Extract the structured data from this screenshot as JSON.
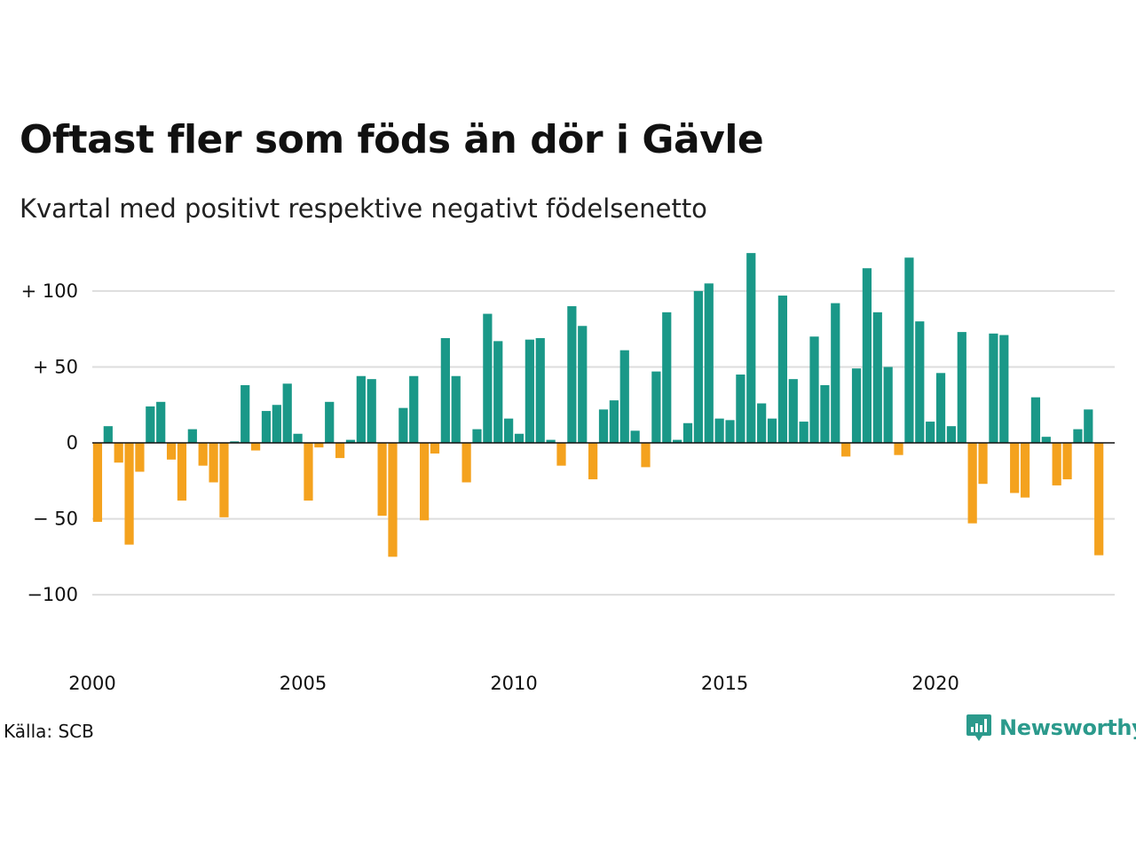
{
  "chart_data": {
    "type": "bar",
    "title": "Oftast fler som föds än dör i Gävle",
    "subtitle": "Kvartal med positivt respektive negativt födelsenetto",
    "source": "Källa: SCB",
    "brand": "Newsworthy",
    "colors": {
      "positive": "#1a9888",
      "negative": "#f4a21e",
      "grid": "#dddddd",
      "axis": "#111111"
    },
    "ylim": [
      -135,
      128
    ],
    "yticks": [
      {
        "value": 100,
        "label": "+ 100"
      },
      {
        "value": 50,
        "label": "+  50"
      },
      {
        "value": 0,
        "label": "0"
      },
      {
        "value": -50,
        "label": "− 50"
      },
      {
        "value": -100,
        "label": "−100"
      }
    ],
    "xlim": [
      2000,
      2024.25
    ],
    "xticks": [
      {
        "value": 2000,
        "label": "2000"
      },
      {
        "value": 2005,
        "label": "2005"
      },
      {
        "value": 2010,
        "label": "2010"
      },
      {
        "value": 2015,
        "label": "2015"
      },
      {
        "value": 2020,
        "label": "2020"
      }
    ],
    "first_period": "2000Q1",
    "values": [
      -52,
      11,
      -13,
      -67,
      -19,
      24,
      27,
      -11,
      -38,
      9,
      -15,
      -26,
      -49,
      1,
      38,
      -5,
      21,
      25,
      39,
      6,
      -38,
      -3,
      27,
      -10,
      2,
      44,
      42,
      -48,
      -75,
      23,
      44,
      -51,
      -7,
      69,
      44,
      -26,
      9,
      85,
      67,
      16,
      6,
      68,
      69,
      2,
      -15,
      90,
      77,
      -24,
      22,
      28,
      61,
      8,
      -16,
      47,
      86,
      2,
      13,
      100,
      105,
      16,
      15,
      45,
      125,
      26,
      16,
      97,
      42,
      14,
      70,
      38,
      92,
      -9,
      49,
      115,
      86,
      50,
      -8,
      122,
      80,
      14,
      46,
      11,
      73,
      -53,
      -27,
      72,
      71,
      -33,
      -36,
      30,
      4,
      -28,
      -24,
      9,
      22,
      -74
    ]
  }
}
